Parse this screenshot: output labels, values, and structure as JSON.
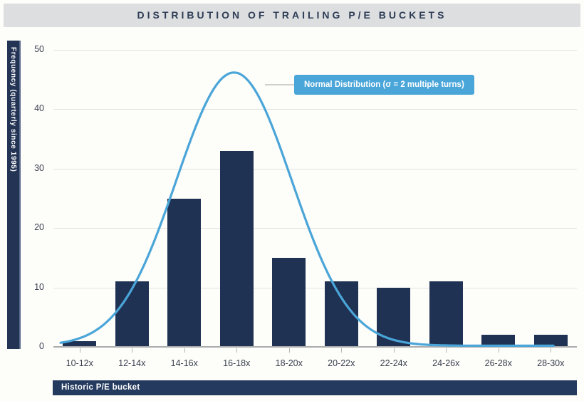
{
  "colors": {
    "page_background": "#FDFDFA",
    "title_bar_background": "#DCDEE0",
    "title_text": "#2E3C55",
    "bar_fill": "#203253",
    "axis_label_bar": "#243A5E",
    "curve_blue": "#4AA5D8",
    "gridline": "#E3E3E3",
    "zero_line": "#ABACAE"
  },
  "chart_data": {
    "type": "bar",
    "title": "DISTRIBUTION OF TRAILING P/E BUCKETS",
    "categories": [
      "10-12x",
      "12-14x",
      "14-16x",
      "16-18x",
      "18-20x",
      "20-22x",
      "22-24x",
      "24-26x",
      "26-28x",
      "28-30x"
    ],
    "values": [
      1,
      11,
      25,
      33,
      15,
      11,
      10,
      11,
      2,
      2
    ],
    "xlabel": "Historic P/E bucket",
    "ylabel": "Frequency (quarterly since 1995)",
    "ylim": [
      0,
      50
    ],
    "yticks": [
      0,
      10,
      20,
      30,
      40,
      50
    ],
    "grid": true,
    "legend_position": "right-of-curve-peak",
    "overlay_curve": {
      "type": "normal",
      "label": "Normal Distribution (σ = 2 multiple turns)",
      "mean_turns": 16.9,
      "sigma_turns": 2.2,
      "peak_frequency": 46,
      "color": "#4AA5D8"
    }
  }
}
